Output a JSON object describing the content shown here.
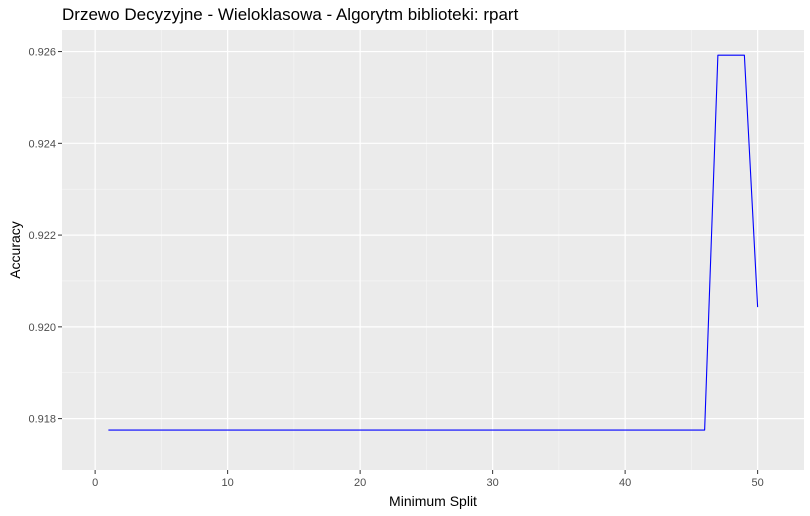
{
  "chart_data": {
    "type": "line",
    "title": "Drzewo Decyzyjne - Wieloklasowa - Algorytm biblioteki: rpart",
    "xlabel": "Minimum Split",
    "ylabel": "Accuracy",
    "xlim": [
      -2.5,
      53.5
    ],
    "ylim": [
      0.91688,
      0.92647
    ],
    "x_ticks": [
      0,
      10,
      20,
      30,
      40,
      50
    ],
    "y_ticks": [
      0.918,
      0.92,
      0.922,
      0.924,
      0.926
    ],
    "grid": true,
    "series": [
      {
        "color": "#0000ff",
        "x": [
          1,
          46,
          47,
          49,
          50
        ],
        "y": [
          0.91775,
          0.91775,
          0.92592,
          0.92592,
          0.92043
        ]
      }
    ]
  }
}
